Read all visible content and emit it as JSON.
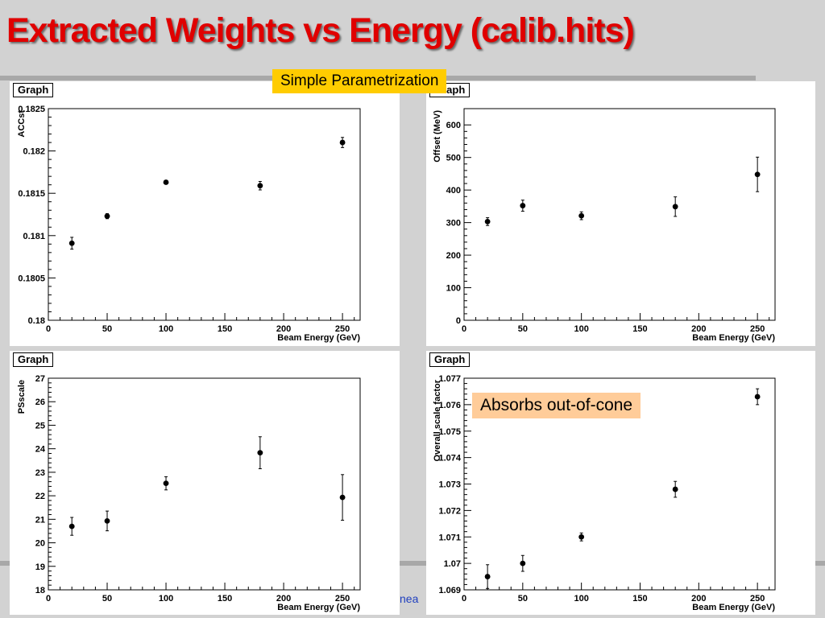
{
  "slide": {
    "title": "Extracted Weights vs Energy (calib.hits)",
    "footer_fragment": "nea"
  },
  "callouts": {
    "top": "Simple Parametrization",
    "bottom_right": "Absorbs out-of-cone"
  },
  "colors": {
    "title": "#e00000",
    "callout_top": "#ffcc00",
    "callout_bottom": "#ffcc99"
  },
  "chart_data": [
    {
      "type": "scatter",
      "tag": "Graph",
      "ylabel": "ACCst",
      "xlabel": "Beam Energy (GeV)",
      "xlim": [
        0,
        265
      ],
      "ylim": [
        0.18,
        0.1825
      ],
      "xticks": [
        0,
        50,
        100,
        150,
        200,
        250
      ],
      "xtick_labels": [
        "0",
        "50",
        "100",
        "150",
        "200",
        "250"
      ],
      "yticks": [
        0.18,
        0.1805,
        0.181,
        0.1815,
        0.182,
        0.1825
      ],
      "ytick_labels": [
        "0.18",
        "0.1805",
        "0.181",
        "0.1815",
        "0.182",
        "0.1825"
      ],
      "points": [
        {
          "x": 20,
          "y": 0.18091,
          "err": 7e-05
        },
        {
          "x": 50,
          "y": 0.18123,
          "err": 3e-05
        },
        {
          "x": 100,
          "y": 0.18163,
          "err": 2e-05
        },
        {
          "x": 180,
          "y": 0.18159,
          "err": 5e-05
        },
        {
          "x": 250,
          "y": 0.1821,
          "err": 6e-05
        }
      ]
    },
    {
      "type": "scatter",
      "tag": "Graph",
      "ylabel": "Offset (MeV)",
      "xlabel": "Beam Energy (GeV)",
      "xlim": [
        0,
        265
      ],
      "ylim": [
        0,
        650
      ],
      "xticks": [
        0,
        50,
        100,
        150,
        200,
        250
      ],
      "xtick_labels": [
        "0",
        "50",
        "100",
        "150",
        "200",
        "250"
      ],
      "yticks": [
        0,
        100,
        200,
        300,
        400,
        500,
        600
      ],
      "ytick_labels": [
        "0",
        "100",
        "200",
        "300",
        "400",
        "500",
        "600"
      ],
      "points": [
        {
          "x": 20,
          "y": 303,
          "err": 12
        },
        {
          "x": 50,
          "y": 352,
          "err": 17
        },
        {
          "x": 100,
          "y": 321,
          "err": 12
        },
        {
          "x": 180,
          "y": 349,
          "err": 30
        },
        {
          "x": 250,
          "y": 448,
          "err": 53
        }
      ]
    },
    {
      "type": "scatter",
      "tag": "Graph",
      "ylabel": "PSscale",
      "xlabel": "Beam Energy (GeV)",
      "xlim": [
        0,
        265
      ],
      "ylim": [
        18,
        27
      ],
      "xticks": [
        0,
        50,
        100,
        150,
        200,
        250
      ],
      "xtick_labels": [
        "0",
        "50",
        "100",
        "150",
        "200",
        "250"
      ],
      "yticks": [
        18,
        19,
        20,
        21,
        22,
        23,
        24,
        25,
        26,
        27
      ],
      "ytick_labels": [
        "18",
        "19",
        "20",
        "21",
        "22",
        "23",
        "24",
        "25",
        "26",
        "27"
      ],
      "points": [
        {
          "x": 20,
          "y": 20.7,
          "err": 0.38
        },
        {
          "x": 50,
          "y": 20.93,
          "err": 0.42
        },
        {
          "x": 100,
          "y": 22.53,
          "err": 0.28
        },
        {
          "x": 180,
          "y": 23.83,
          "err": 0.68
        },
        {
          "x": 250,
          "y": 21.93,
          "err": 0.97
        }
      ]
    },
    {
      "type": "scatter",
      "tag": "Graph",
      "ylabel": "Overall scale factor",
      "xlabel": "Beam Energy (GeV)",
      "xlim": [
        0,
        265
      ],
      "ylim": [
        1.069,
        1.077
      ],
      "xticks": [
        0,
        50,
        100,
        150,
        200,
        250
      ],
      "xtick_labels": [
        "0",
        "50",
        "100",
        "150",
        "200",
        "250"
      ],
      "yticks": [
        1.069,
        1.07,
        1.071,
        1.072,
        1.073,
        1.074,
        1.075,
        1.076,
        1.077
      ],
      "ytick_labels": [
        "1.069",
        "1.07",
        "1.071",
        "1.072",
        "1.073",
        "1.074",
        "1.075",
        "1.076",
        "1.077"
      ],
      "points": [
        {
          "x": 20,
          "y": 1.0695,
          "err": 0.00045
        },
        {
          "x": 50,
          "y": 1.07,
          "err": 0.0003
        },
        {
          "x": 100,
          "y": 1.071,
          "err": 0.00015
        },
        {
          "x": 180,
          "y": 1.0728,
          "err": 0.0003
        },
        {
          "x": 250,
          "y": 1.0763,
          "err": 0.0003
        }
      ]
    }
  ]
}
